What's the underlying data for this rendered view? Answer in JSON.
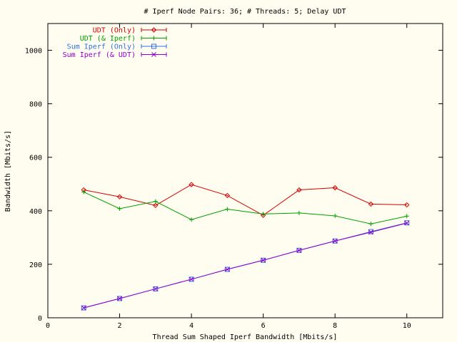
{
  "chart_data": {
    "type": "line",
    "title": "# Iperf Node Pairs: 36; # Threads: 5; Delay UDT",
    "xlabel": "Thread Sum Shaped Iperf Bandwidth [Mbits/s]",
    "ylabel": "Bandwidth [Mbits/s]",
    "xlim": [
      0,
      11
    ],
    "ylim": [
      0,
      1100
    ],
    "xticks": [
      0,
      2,
      4,
      6,
      8,
      10
    ],
    "yticks": [
      0,
      200,
      400,
      600,
      800,
      1000
    ],
    "grid": false,
    "legend_position": "top-left",
    "x": [
      1,
      2,
      3,
      4,
      5,
      6,
      7,
      8,
      9,
      10
    ],
    "series": [
      {
        "name": "UDT (Only)",
        "color": "#d40000",
        "marker": "diamond",
        "values": [
          478,
          452,
          420,
          498,
          457,
          383,
          478,
          486,
          425,
          422
        ]
      },
      {
        "name": "UDT (& Iperf)",
        "color": "#00a000",
        "marker": "plus",
        "values": [
          470,
          408,
          435,
          367,
          406,
          388,
          392,
          381,
          351,
          380
        ]
      },
      {
        "name": "Sum Iperf (Only)",
        "color": "#3070e0",
        "marker": "square",
        "values": [
          37,
          72,
          108,
          144,
          181,
          215,
          252,
          287,
          322,
          355
        ]
      },
      {
        "name": "Sum Iperf (& UDT)",
        "color": "#9000d0",
        "marker": "cross",
        "values": [
          37,
          72,
          108,
          144,
          181,
          215,
          252,
          287,
          320,
          354
        ]
      }
    ]
  }
}
